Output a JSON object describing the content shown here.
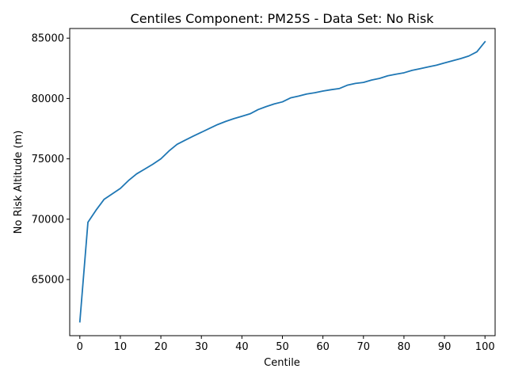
{
  "chart_data": {
    "type": "line",
    "title": "Centiles Component: PM25S - Data Set: No Risk",
    "xlabel": "Centile",
    "ylabel": "No Risk Altitude (m)",
    "xlim": [
      -2.5,
      102.5
    ],
    "ylim": [
      60350,
      85800
    ],
    "xticks": [
      0,
      10,
      20,
      30,
      40,
      50,
      60,
      70,
      80,
      90,
      100
    ],
    "xtick_labels": [
      "0",
      "10",
      "20",
      "30",
      "40",
      "50",
      "60",
      "70",
      "80",
      "90",
      "100"
    ],
    "yticks": [
      65000,
      70000,
      75000,
      80000,
      85000
    ],
    "ytick_labels": [
      "65000",
      "70000",
      "75000",
      "80000",
      "85000"
    ],
    "grid": false,
    "legend": "none",
    "series": [
      {
        "color": "#1f77b4",
        "x": [
          0,
          2,
          4,
          6,
          8,
          10,
          12,
          14,
          16,
          18,
          20,
          22,
          24,
          26,
          28,
          30,
          32,
          34,
          36,
          38,
          40,
          42,
          44,
          46,
          48,
          50,
          52,
          54,
          56,
          58,
          60,
          62,
          64,
          66,
          68,
          70,
          72,
          74,
          76,
          78,
          80,
          82,
          84,
          86,
          88,
          90,
          92,
          94,
          96,
          98,
          100
        ],
        "values": [
          61500,
          69750,
          70750,
          71650,
          72100,
          72550,
          73200,
          73750,
          74150,
          74550,
          75000,
          75650,
          76200,
          76550,
          76880,
          77200,
          77520,
          77840,
          78100,
          78330,
          78530,
          78730,
          79080,
          79330,
          79550,
          79720,
          80050,
          80200,
          80370,
          80480,
          80620,
          80730,
          80820,
          81100,
          81250,
          81330,
          81530,
          81670,
          81880,
          82010,
          82130,
          82330,
          82470,
          82620,
          82760,
          82950,
          83130,
          83310,
          83520,
          83870,
          84700
        ]
      }
    ]
  }
}
